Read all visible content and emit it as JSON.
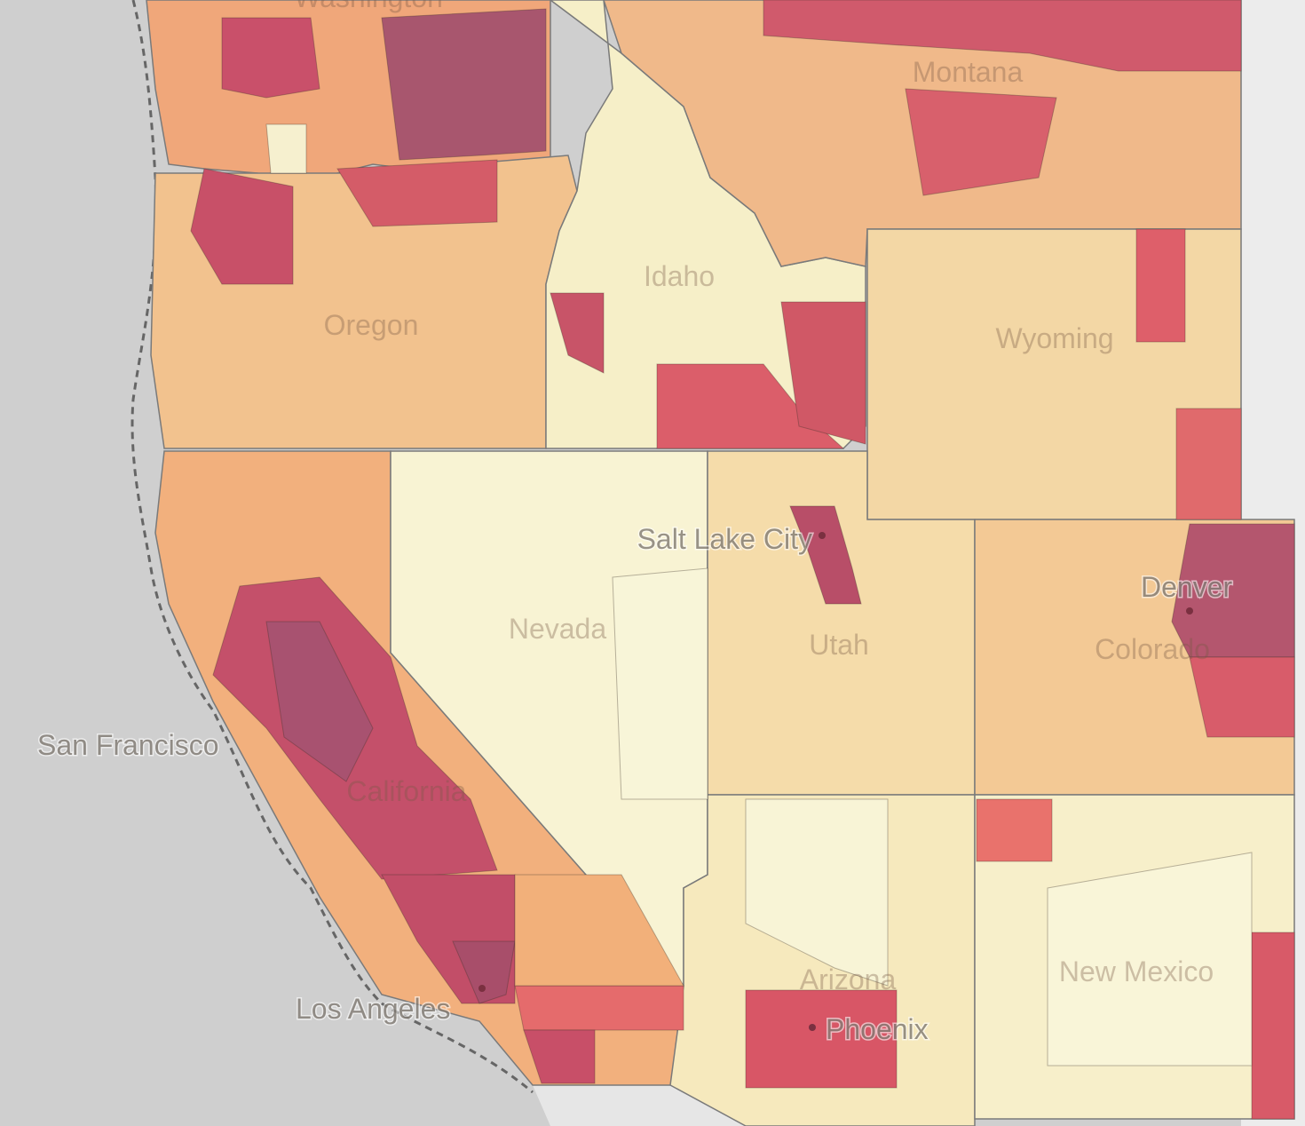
{
  "map": {
    "states": [
      "Washington",
      "Montana",
      "Idaho",
      "Oregon",
      "Wyoming",
      "Nevada",
      "Utah",
      "Colorado",
      "California",
      "Arizona",
      "New Mexico"
    ],
    "cities": [
      "Salt Lake City",
      "Denver",
      "San Francisco",
      "Los Angeles",
      "Phoenix"
    ]
  }
}
